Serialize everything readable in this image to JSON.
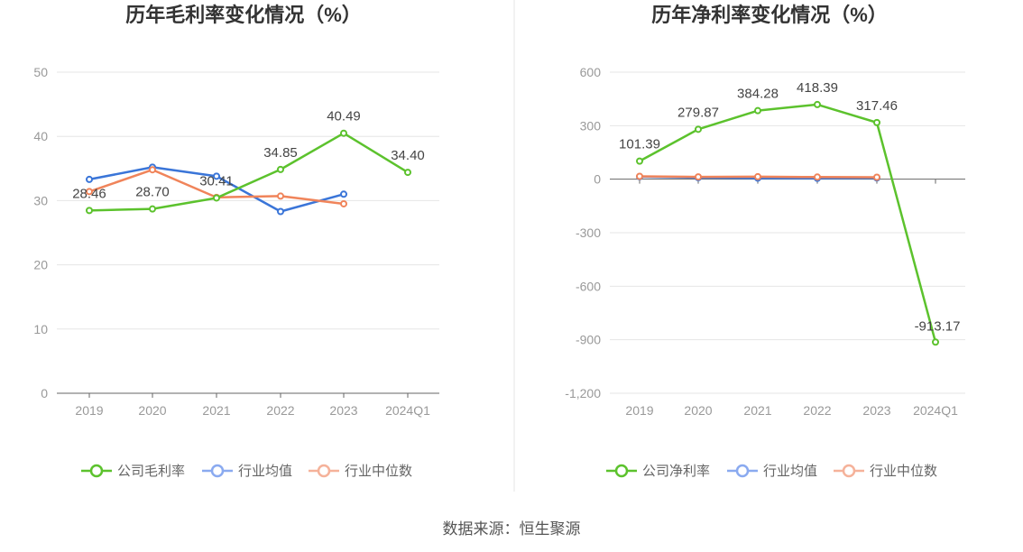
{
  "source": "数据来源：恒生聚源",
  "chart_data": [
    {
      "type": "line",
      "title": "历年毛利率变化情况（%）",
      "categories": [
        "2019",
        "2020",
        "2021",
        "2022",
        "2023",
        "2024Q1"
      ],
      "ylim": [
        0,
        50
      ],
      "yticks": [
        0,
        10,
        20,
        30,
        40,
        50
      ],
      "ytick_labels": [
        "0",
        "10",
        "20",
        "30",
        "40",
        "50"
      ],
      "series": [
        {
          "name": "公司毛利率",
          "color": "#5cc22d",
          "values": [
            28.46,
            28.7,
            30.41,
            34.85,
            40.49,
            34.4
          ],
          "labels": [
            "28.46",
            "28.70",
            "30.41",
            "34.85",
            "40.49",
            "34.40"
          ]
        },
        {
          "name": "行业均值",
          "color": "#3a75d8",
          "values": [
            33.3,
            35.2,
            33.8,
            28.3,
            31.0,
            null
          ]
        },
        {
          "name": "行业中位数",
          "color": "#f0845a",
          "values": [
            31.4,
            34.8,
            30.5,
            30.7,
            29.5,
            null
          ]
        }
      ],
      "legend": [
        {
          "name": "公司毛利率",
          "color": "#5cc22d"
        },
        {
          "name": "行业均值",
          "color": "#8aaaf0"
        },
        {
          "name": "行业中位数",
          "color": "#f5b29a"
        }
      ]
    },
    {
      "type": "line",
      "title": "历年净利率变化情况（%）",
      "categories": [
        "2019",
        "2020",
        "2021",
        "2022",
        "2023",
        "2024Q1"
      ],
      "ylim": [
        -1200,
        600
      ],
      "yticks": [
        -1200,
        -900,
        -600,
        -300,
        0,
        300,
        600
      ],
      "ytick_labels": [
        "-1,200",
        "-900",
        "-600",
        "-300",
        "0",
        "300",
        "600"
      ],
      "series": [
        {
          "name": "公司净利率",
          "color": "#5cc22d",
          "values": [
            101.39,
            279.87,
            384.28,
            418.39,
            317.46,
            -913.17
          ],
          "labels": [
            "101.39",
            "279.87",
            "384.28",
            "418.39",
            "317.46",
            "-913.17"
          ]
        },
        {
          "name": "行业均值",
          "color": "#3a75d8",
          "values": [
            14,
            9,
            6,
            5,
            7,
            null
          ]
        },
        {
          "name": "行业中位数",
          "color": "#f0845a",
          "values": [
            16,
            13,
            14,
            12,
            11,
            null
          ]
        }
      ],
      "legend": [
        {
          "name": "公司净利率",
          "color": "#5cc22d"
        },
        {
          "name": "行业均值",
          "color": "#8aaaf0"
        },
        {
          "name": "行业中位数",
          "color": "#f5b29a"
        }
      ]
    }
  ]
}
